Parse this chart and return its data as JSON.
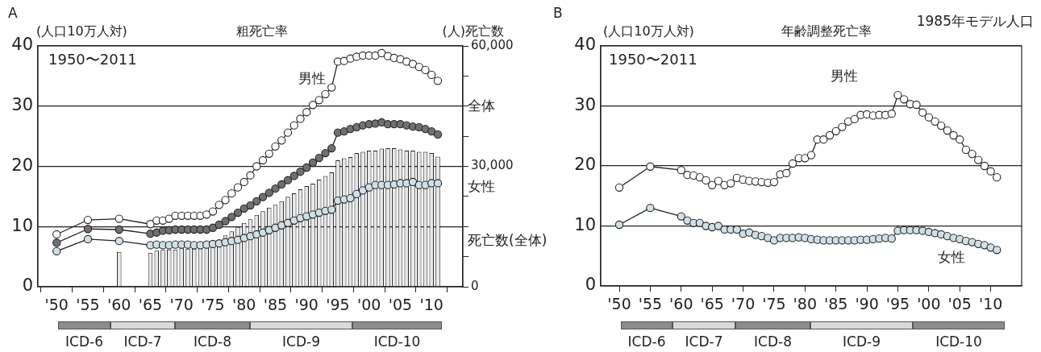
{
  "chart_data": [
    {
      "type": "line",
      "title": "粗死亡率",
      "ylabel": "(人口10万人対)",
      "y2label": "(人)死亡数",
      "annotations": [
        "A",
        "1950〜2011",
        "ICD-6",
        "ICD-7",
        "ICD-8",
        "ICD-9",
        "ICD-10"
      ],
      "marker": "circle",
      "grid": "y",
      "legend": false,
      "xlim": [
        1947,
        2015
      ],
      "xticks": [
        {
          "value": 1950,
          "label": "'50"
        },
        {
          "value": 1955,
          "label": "'55"
        },
        {
          "value": 1960,
          "label": "'60"
        },
        {
          "value": 1965,
          "label": "'65"
        },
        {
          "value": 1970,
          "label": "'70"
        },
        {
          "value": 1975,
          "label": "'75"
        },
        {
          "value": 1980,
          "label": "'80"
        },
        {
          "value": 1985,
          "label": "'85"
        },
        {
          "value": 1990,
          "label": "'90"
        },
        {
          "value": 1995,
          "label": "'95"
        },
        {
          "value": 2000,
          "label": "'00"
        },
        {
          "value": 2005,
          "label": "'05"
        },
        {
          "value": 2010,
          "label": "'10"
        }
      ],
      "ylim": [
        0,
        40
      ],
      "yticks": [
        0,
        10,
        20,
        30,
        40
      ],
      "y2lim": [
        0,
        60000
      ],
      "y2ticks": [
        0,
        {
          "value": 7500,
          "label": null
        },
        {
          "value": 15000,
          "label": null
        },
        {
          "value": 22500,
          "label": null
        },
        {
          "value": 30000,
          "label": "30,000"
        },
        {
          "value": 37500,
          "label": null
        },
        {
          "value": 45000,
          "label": null
        },
        {
          "value": 52500,
          "label": null
        },
        {
          "value": 60000,
          "label": "60,000"
        }
      ],
      "series": [
        {
          "name": "死亡数(全体)",
          "type": "bar",
          "axis": "y2",
          "color": "#e8e8e8",
          "x": [
            1960,
            1965,
            1966,
            1967,
            1968,
            1969,
            1970,
            1971,
            1972,
            1973,
            1974,
            1975,
            1976,
            1977,
            1978,
            1979,
            1980,
            1981,
            1982,
            1983,
            1984,
            1985,
            1986,
            1987,
            1988,
            1989,
            1990,
            1991,
            1992,
            1993,
            1994,
            1995,
            1996,
            1997,
            1998,
            1999,
            2000,
            2001,
            2002,
            2003,
            2004,
            2005,
            2006,
            2007,
            2008,
            2009,
            2010,
            2011
          ],
          "values": [
            8700,
            8500,
            9000,
            9200,
            9300,
            9300,
            9600,
            9500,
            9500,
            9600,
            9800,
            10500,
            11700,
            12800,
            13800,
            14900,
            15900,
            16800,
            17900,
            18800,
            19700,
            20400,
            21300,
            22400,
            23300,
            24300,
            25100,
            25700,
            26700,
            27600,
            28500,
            31500,
            32000,
            32300,
            33300,
            33600,
            33900,
            33900,
            34400,
            34500,
            34500,
            34200,
            33900,
            33900,
            33600,
            33600,
            33300,
            32400
          ]
        },
        {
          "name": "男性",
          "color": "#ffffff",
          "x": [
            1950,
            1955,
            1960,
            1965,
            1966,
            1967,
            1968,
            1969,
            1970,
            1971,
            1972,
            1973,
            1974,
            1975,
            1976,
            1977,
            1978,
            1979,
            1980,
            1981,
            1982,
            1983,
            1984,
            1985,
            1986,
            1987,
            1988,
            1989,
            1990,
            1991,
            1992,
            1993,
            1994,
            1995,
            1996,
            1997,
            1998,
            1999,
            2000,
            2001,
            2002,
            2003,
            2004,
            2005,
            2006,
            2007,
            2008,
            2009,
            2010,
            2011
          ],
          "values": [
            8.7,
            11.1,
            11.3,
            10.4,
            11.0,
            11.0,
            11.3,
            11.8,
            11.8,
            11.8,
            11.8,
            11.8,
            12.0,
            12.5,
            13.6,
            14.4,
            15.5,
            16.5,
            17.4,
            18.5,
            20.0,
            21.0,
            22.1,
            23.3,
            24.3,
            25.6,
            26.8,
            27.9,
            29.0,
            30.2,
            31.0,
            32.0,
            33.1,
            37.4,
            37.5,
            37.9,
            38.2,
            38.4,
            38.4,
            38.4,
            38.8,
            38.3,
            38.0,
            37.8,
            37.4,
            37.0,
            36.5,
            36.0,
            35.2,
            34.2
          ]
        },
        {
          "name": "全体",
          "color": "#707070",
          "x": [
            1950,
            1955,
            1960,
            1965,
            1966,
            1967,
            1968,
            1969,
            1970,
            1971,
            1972,
            1973,
            1974,
            1975,
            1976,
            1977,
            1978,
            1979,
            1980,
            1981,
            1982,
            1983,
            1984,
            1985,
            1986,
            1987,
            1988,
            1989,
            1990,
            1991,
            1992,
            1993,
            1994,
            1995,
            1996,
            1997,
            1998,
            1999,
            2000,
            2001,
            2002,
            2003,
            2004,
            2005,
            2006,
            2007,
            2008,
            2009,
            2010,
            2011
          ],
          "values": [
            7.3,
            9.6,
            9.5,
            8.8,
            9.0,
            9.3,
            9.4,
            9.5,
            9.5,
            9.5,
            9.5,
            9.5,
            9.5,
            9.8,
            10.3,
            10.9,
            11.6,
            12.3,
            13.0,
            13.5,
            14.2,
            14.9,
            15.6,
            16.3,
            17.0,
            17.7,
            18.4,
            19.1,
            19.8,
            20.6,
            21.4,
            22.2,
            23.0,
            25.6,
            25.8,
            26.2,
            26.5,
            26.8,
            27.0,
            27.1,
            27.3,
            27.0,
            27.0,
            27.0,
            26.8,
            26.6,
            26.5,
            26.2,
            25.8,
            25.3
          ]
        },
        {
          "name": "女性",
          "color": "#cfe0e8",
          "x": [
            1950,
            1955,
            1960,
            1965,
            1966,
            1967,
            1968,
            1969,
            1970,
            1971,
            1972,
            1973,
            1974,
            1975,
            1976,
            1977,
            1978,
            1979,
            1980,
            1981,
            1982,
            1983,
            1984,
            1985,
            1986,
            1987,
            1988,
            1989,
            1990,
            1991,
            1992,
            1993,
            1994,
            1995,
            1996,
            1997,
            1998,
            1999,
            2000,
            2001,
            2002,
            2003,
            2004,
            2005,
            2006,
            2007,
            2008,
            2009,
            2010,
            2011
          ],
          "values": [
            5.9,
            7.9,
            7.6,
            6.9,
            7.0,
            6.9,
            6.9,
            7.0,
            7.0,
            7.0,
            6.9,
            6.9,
            7.0,
            7.1,
            7.2,
            7.4,
            7.6,
            7.8,
            8.1,
            8.4,
            8.7,
            9.0,
            9.4,
            9.8,
            10.2,
            10.6,
            11.0,
            11.4,
            11.7,
            12.0,
            12.3,
            12.6,
            12.8,
            14.3,
            14.5,
            14.7,
            15.4,
            16.0,
            16.5,
            16.9,
            16.9,
            16.9,
            17.0,
            17.2,
            17.2,
            17.4,
            16.9,
            16.9,
            17.2,
            17.2
          ]
        }
      ]
    },
    {
      "type": "line",
      "title": "年齢調整死亡率",
      "subtitle": "1985年モデル人口",
      "ylabel": "(人口10万人対)",
      "annotations": [
        "B",
        "1950〜2011",
        "ICD-6",
        "ICD-7",
        "ICD-8",
        "ICD-9",
        "ICD-10"
      ],
      "marker": "circle",
      "grid": "y",
      "legend": false,
      "xlim": [
        1947,
        2015
      ],
      "xticks": [
        {
          "value": 1950,
          "label": "'50"
        },
        {
          "value": 1955,
          "label": "'55"
        },
        {
          "value": 1960,
          "label": "'60"
        },
        {
          "value": 1965,
          "label": "'65"
        },
        {
          "value": 1970,
          "label": "'70"
        },
        {
          "value": 1975,
          "label": "'75"
        },
        {
          "value": 1980,
          "label": "'80"
        },
        {
          "value": 1985,
          "label": "'85"
        },
        {
          "value": 1990,
          "label": "'90"
        },
        {
          "value": 1995,
          "label": "'95"
        },
        {
          "value": 2000,
          "label": "'00"
        },
        {
          "value": 2005,
          "label": "'05"
        },
        {
          "value": 2010,
          "label": "'10"
        }
      ],
      "ylim": [
        0,
        40
      ],
      "yticks": [
        0,
        10,
        20,
        30,
        40
      ],
      "x": [
        1950,
        1955,
        1960,
        1961,
        1962,
        1963,
        1964,
        1965,
        1966,
        1967,
        1968,
        1969,
        1970,
        1971,
        1972,
        1973,
        1974,
        1975,
        1976,
        1977,
        1978,
        1979,
        1980,
        1981,
        1982,
        1983,
        1984,
        1985,
        1986,
        1987,
        1988,
        1989,
        1990,
        1991,
        1992,
        1993,
        1994,
        1995,
        1996,
        1997,
        1998,
        1999,
        2000,
        2001,
        2002,
        2003,
        2004,
        2005,
        2006,
        2007,
        2008,
        2009,
        2010,
        2011
      ],
      "series": [
        {
          "name": "男性",
          "color": "#ffffff",
          "values": [
            16.4,
            19.9,
            19.3,
            18.5,
            18.4,
            18.1,
            17.6,
            16.8,
            17.5,
            16.8,
            17.1,
            18.0,
            17.7,
            17.5,
            17.4,
            17.3,
            17.2,
            17.3,
            18.6,
            18.8,
            20.4,
            21.3,
            21.3,
            21.8,
            24.4,
            24.4,
            25.1,
            25.8,
            26.5,
            27.4,
            27.8,
            28.5,
            28.6,
            28.4,
            28.5,
            28.5,
            28.7,
            31.8,
            31.1,
            30.3,
            30.2,
            28.9,
            28.1,
            27.4,
            26.7,
            25.9,
            25.1,
            24.4,
            22.7,
            22.0,
            21.0,
            20.0,
            19.1,
            18.1
          ]
        },
        {
          "name": "女性",
          "color": "#cfe0e8",
          "values": [
            10.2,
            13.0,
            11.6,
            10.9,
            10.5,
            10.5,
            10.0,
            9.8,
            10.0,
            9.4,
            9.4,
            9.4,
            8.7,
            8.9,
            8.5,
            8.3,
            8.0,
            7.6,
            8.0,
            8.0,
            8.0,
            8.1,
            8.0,
            7.8,
            7.7,
            7.6,
            7.6,
            7.6,
            7.6,
            7.6,
            7.6,
            7.7,
            7.7,
            7.8,
            7.9,
            8.0,
            7.9,
            9.2,
            9.3,
            9.3,
            9.3,
            9.2,
            9.0,
            8.8,
            8.6,
            8.3,
            8.0,
            7.8,
            7.5,
            7.3,
            7.0,
            6.8,
            6.4,
            6.0
          ]
        }
      ]
    }
  ]
}
